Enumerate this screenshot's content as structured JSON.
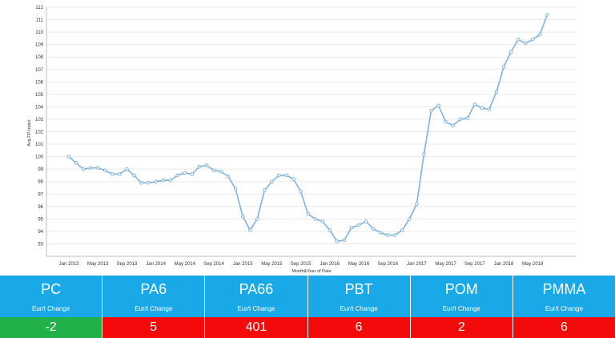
{
  "chart_data": {
    "type": "line",
    "title": "",
    "xlabel": "Month&Year of Date",
    "ylabel": "Avg FP-Index",
    "ylim": [
      92,
      112
    ],
    "yticks": [
      93,
      94,
      95,
      96,
      97,
      98,
      99,
      100,
      101,
      102,
      103,
      104,
      105,
      106,
      107,
      108,
      109,
      110,
      111,
      112
    ],
    "xticks": [
      "Jan 2013",
      "May 2013",
      "Sep 2013",
      "Jan 2014",
      "May 2014",
      "Sep 2014",
      "Jan 2015",
      "May 2015",
      "Sep 2015",
      "Jan 2016",
      "May 2016",
      "Sep 2016",
      "Jan 2017",
      "May 2017",
      "Sep 2017",
      "Jan 2018",
      "May 2018"
    ],
    "grid": true,
    "series": [
      {
        "color": "#7db3df",
        "x": [
          "2013-01",
          "2013-02",
          "2013-03",
          "2013-04",
          "2013-05",
          "2013-06",
          "2013-07",
          "2013-08",
          "2013-09",
          "2013-10",
          "2013-11",
          "2013-12",
          "2014-01",
          "2014-02",
          "2014-03",
          "2014-04",
          "2014-05",
          "2014-06",
          "2014-07",
          "2014-08",
          "2014-09",
          "2014-10",
          "2014-11",
          "2014-12",
          "2015-01",
          "2015-02",
          "2015-03",
          "2015-04",
          "2015-05",
          "2015-06",
          "2015-07",
          "2015-08",
          "2015-09",
          "2015-10",
          "2015-11",
          "2015-12",
          "2016-01",
          "2016-02",
          "2016-03",
          "2016-04",
          "2016-05",
          "2016-06",
          "2016-07",
          "2016-08",
          "2016-09",
          "2016-10",
          "2016-11",
          "2016-12",
          "2017-01",
          "2017-02",
          "2017-03",
          "2017-04",
          "2017-05",
          "2017-06",
          "2017-07",
          "2017-08",
          "2017-09",
          "2017-10",
          "2017-11",
          "2017-12",
          "2018-01",
          "2018-02",
          "2018-03",
          "2018-04",
          "2018-05",
          "2018-06",
          "2018-07"
        ],
        "values": [
          100.0,
          99.5,
          99.0,
          99.1,
          99.1,
          98.9,
          98.6,
          98.6,
          99.0,
          98.5,
          97.9,
          97.9,
          98.0,
          98.1,
          98.1,
          98.5,
          98.7,
          98.6,
          99.2,
          99.3,
          98.9,
          98.8,
          98.4,
          97.4,
          95.2,
          94.1,
          95.0,
          97.3,
          98.0,
          98.5,
          98.5,
          98.2,
          97.2,
          95.4,
          95.0,
          94.8,
          94.1,
          93.2,
          93.3,
          94.3,
          94.5,
          94.8,
          94.2,
          93.9,
          93.7,
          93.7,
          94.1,
          95.0,
          96.2,
          100.2,
          103.7,
          104.1,
          102.8,
          102.5,
          103.0,
          103.1,
          104.2,
          103.9,
          103.8,
          105.2,
          107.2,
          108.4,
          109.4,
          109.1,
          109.4,
          109.8,
          111.4
        ]
      }
    ]
  },
  "table": {
    "columns": [
      {
        "name": "PC",
        "unit": "Eur/t Change",
        "value": "-2",
        "color": "#22b04b"
      },
      {
        "name": "PA6",
        "unit": "Eur/t Change",
        "value": "5",
        "color": "#f40a0a"
      },
      {
        "name": "PA66",
        "unit": "Eur/t Change",
        "value": "401",
        "color": "#f40a0a"
      },
      {
        "name": "PBT",
        "unit": "Eur/t Change",
        "value": "6",
        "color": "#f40a0a"
      },
      {
        "name": "POM",
        "unit": "Eur/t Change",
        "value": "2",
        "color": "#f40a0a"
      },
      {
        "name": "PMMA",
        "unit": "Eur/t Change",
        "value": "6",
        "color": "#f40a0a"
      }
    ]
  }
}
